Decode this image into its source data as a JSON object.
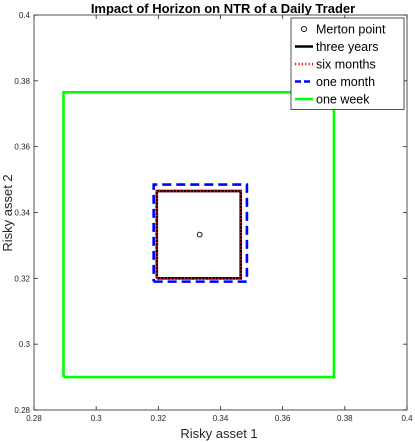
{
  "chart_data": {
    "type": "line",
    "title": "Impact of Horizon on NTR of a Daily Trader",
    "xlabel": "Risky asset 1",
    "ylabel": "Risky asset 2",
    "xlim": [
      0.28,
      0.4
    ],
    "ylim": [
      0.28,
      0.4
    ],
    "xticks": [
      "0.28",
      "0.3",
      "0.32",
      "0.34",
      "0.36",
      "0.38",
      "0.4"
    ],
    "yticks": [
      "0.28",
      "0.3",
      "0.32",
      "0.34",
      "0.36",
      "0.38",
      "0.4"
    ],
    "grid": false,
    "legend_position": "top-right",
    "point": {
      "name": "Merton point",
      "x": 0.3333,
      "y": 0.3333,
      "color": "#000000"
    },
    "series": [
      {
        "name": "three years",
        "color": "#000000",
        "style": "solid",
        "x": [
          0.3195,
          0.3465,
          0.3465,
          0.3195,
          0.3195
        ],
        "y": [
          0.32,
          0.32,
          0.3465,
          0.3465,
          0.32
        ]
      },
      {
        "name": "six months",
        "color": "#ff0000",
        "style": "dotted",
        "x": [
          0.3195,
          0.3465,
          0.3465,
          0.3195,
          0.3195
        ],
        "y": [
          0.32,
          0.32,
          0.3465,
          0.3465,
          0.32
        ]
      },
      {
        "name": "one month",
        "color": "#0000ff",
        "style": "dashed",
        "x": [
          0.3185,
          0.3485,
          0.3485,
          0.3185,
          0.3185
        ],
        "y": [
          0.319,
          0.319,
          0.3485,
          0.3485,
          0.319
        ]
      },
      {
        "name": "one week",
        "color": "#00ff00",
        "style": "solid",
        "x": [
          0.2895,
          0.3765,
          0.3765,
          0.2895,
          0.2895
        ],
        "y": [
          0.29,
          0.29,
          0.3765,
          0.3765,
          0.29
        ]
      }
    ]
  }
}
